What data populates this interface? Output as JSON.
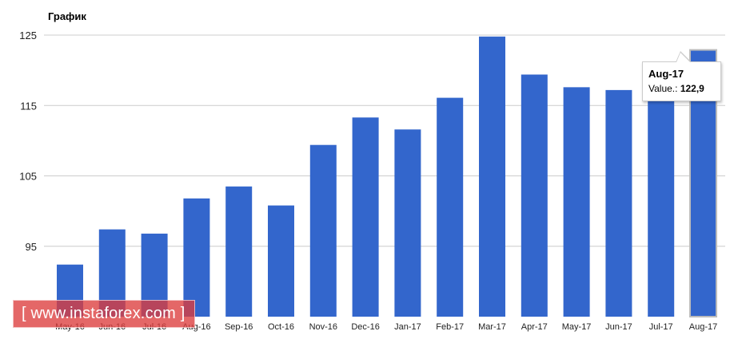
{
  "chart_data": {
    "type": "bar",
    "title": "График",
    "categories": [
      "May-16",
      "Jun-16",
      "Jul-16",
      "Aug-16",
      "Sep-16",
      "Oct-16",
      "Nov-16",
      "Dec-16",
      "Jan-17",
      "Feb-17",
      "Mar-17",
      "Apr-17",
      "May-17",
      "Jun-17",
      "Jul-17",
      "Aug-17"
    ],
    "values": [
      92.4,
      97.4,
      96.8,
      101.8,
      103.5,
      100.8,
      109.4,
      113.3,
      111.6,
      116.1,
      124.8,
      119.4,
      117.6,
      117.2,
      118.1,
      122.9
    ],
    "yticks": [
      95,
      105,
      115,
      125
    ],
    "ylim": [
      85,
      127.5
    ],
    "bar_color": "#3366cc",
    "grid": true,
    "xlabel": "",
    "ylabel": ""
  },
  "tooltip": {
    "category": "Aug-17",
    "label": "Value.:",
    "value": "122,9"
  },
  "watermark": {
    "text": "www.instaforex.com"
  }
}
